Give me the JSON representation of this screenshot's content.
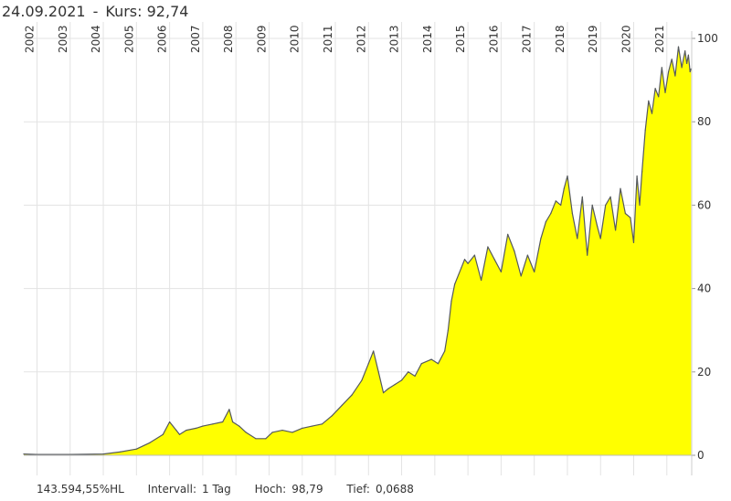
{
  "header": {
    "date": "24.09.2021",
    "separator": "-",
    "price_label": "Kurs:",
    "price_value": "92,74"
  },
  "footer": {
    "performance": "143.594,55%HL",
    "interval_label": "Intervall:",
    "interval_value": "1 Tag",
    "high_label": "Hoch:",
    "high_value": "98,79",
    "low_label": "Tief:",
    "low_value": "0,0688"
  },
  "colors": {
    "fill": "#ffff00",
    "line": "#55595c",
    "grid": "#e3e3e3",
    "text": "#333333"
  },
  "chart_data": {
    "type": "area",
    "x_ticks": [
      "2002",
      "2003",
      "2004",
      "2005",
      "2006",
      "2007",
      "2008",
      "2009",
      "2010",
      "2011",
      "2012",
      "2013",
      "2014",
      "2015",
      "2016",
      "2017",
      "2018",
      "2019",
      "2020",
      "2021"
    ],
    "y_ticks": [
      0,
      20,
      40,
      60,
      80,
      100
    ],
    "ylim": [
      0,
      100
    ],
    "xlim": [
      2001.6,
      2021.75
    ],
    "grid": true,
    "y_axis_side": "right",
    "series": [
      {
        "x": [
          2001.6,
          2002.0,
          2003.0,
          2004.0,
          2004.5,
          2005.0,
          2005.4,
          2005.8,
          2006.0,
          2006.2,
          2006.3,
          2006.5,
          2006.8,
          2007.0,
          2007.3,
          2007.6,
          2007.8,
          2007.9,
          2008.1,
          2008.3,
          2008.6,
          2008.9,
          2009.1,
          2009.4,
          2009.7,
          2010.0,
          2010.3,
          2010.6,
          2010.9,
          2011.2,
          2011.5,
          2011.8,
          2012.0,
          2012.15,
          2012.3,
          2012.45,
          2012.6,
          2012.8,
          2013.0,
          2013.2,
          2013.4,
          2013.6,
          2013.9,
          2014.1,
          2014.3,
          2014.4,
          2014.5,
          2014.6,
          2014.8,
          2014.9,
          2015.0,
          2015.2,
          2015.4,
          2015.6,
          2015.8,
          2016.0,
          2016.2,
          2016.4,
          2016.6,
          2016.8,
          2017.0,
          2017.2,
          2017.35,
          2017.5,
          2017.65,
          2017.8,
          2017.9,
          2018.0,
          2018.15,
          2018.3,
          2018.45,
          2018.6,
          2018.75,
          2018.9,
          2019.0,
          2019.15,
          2019.3,
          2019.45,
          2019.6,
          2019.75,
          2019.9,
          2020.0,
          2020.1,
          2020.18,
          2020.25,
          2020.35,
          2020.45,
          2020.55,
          2020.65,
          2020.75,
          2020.85,
          2020.95,
          2021.05,
          2021.15,
          2021.25,
          2021.35,
          2021.45,
          2021.55,
          2021.6,
          2021.65,
          2021.7,
          2021.73
        ],
        "y": [
          0.3,
          0.2,
          0.2,
          0.3,
          0.8,
          1.5,
          3,
          5,
          8,
          6,
          5,
          6,
          6.5,
          7,
          7.5,
          8,
          11,
          8,
          7,
          5.5,
          4,
          4,
          5.5,
          6,
          5.5,
          6.5,
          7,
          7.5,
          9.5,
          12,
          14.5,
          18,
          22,
          25,
          20,
          15,
          16,
          17,
          18,
          20,
          19,
          22,
          23,
          22,
          25,
          30,
          37,
          41,
          45,
          47,
          46,
          48,
          42,
          50,
          47,
          44,
          53,
          49,
          43,
          48,
          44,
          52,
          56,
          58,
          61,
          60,
          64,
          67,
          58,
          52,
          62,
          48,
          60,
          55,
          52,
          60,
          62,
          54,
          64,
          58,
          57,
          51,
          67,
          60,
          68,
          78,
          85,
          82,
          88,
          86,
          93,
          87,
          92,
          95,
          91,
          98,
          93,
          97,
          94,
          96,
          92,
          92.7
        ]
      }
    ]
  }
}
